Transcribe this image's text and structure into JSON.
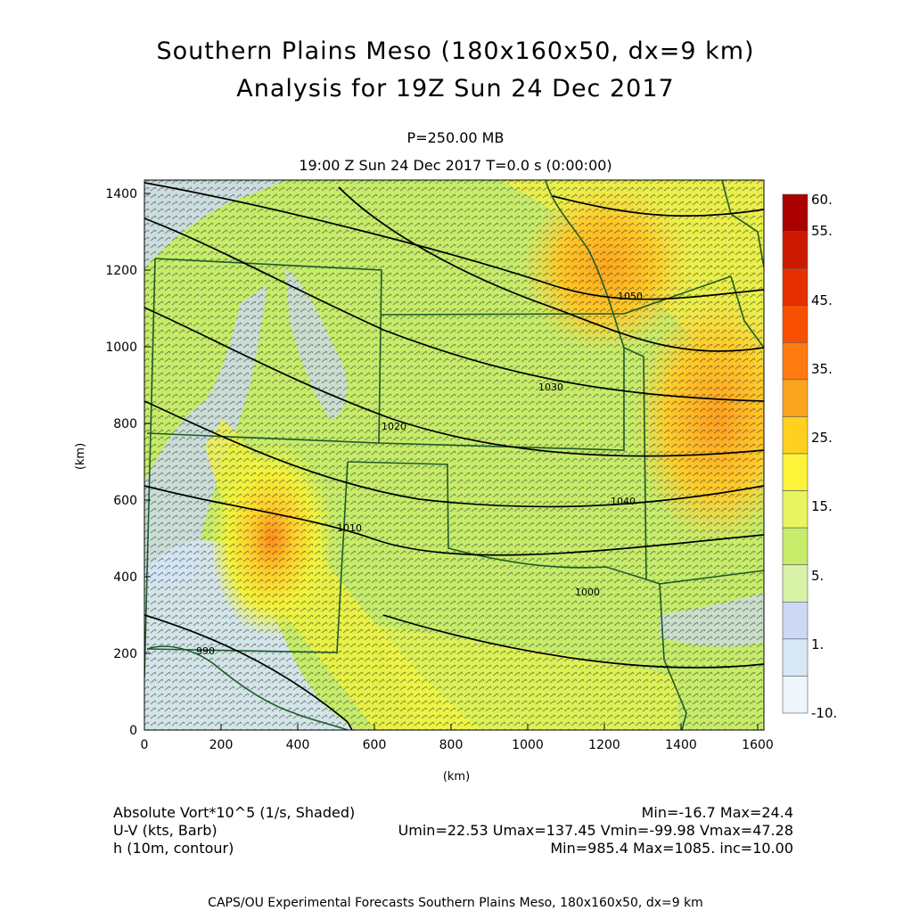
{
  "header": {
    "title_line1": "Southern Plains Meso (180x160x50, dx=9 km)",
    "title_line2": "Analysis for 19Z Sun 24 Dec 2017",
    "level": "P=250.00 MB",
    "timeline": "19:00 Z Sun 24 Dec 2017    T=0.0 s (0:00:00)"
  },
  "axes": {
    "x_label": "(km)",
    "y_label": "(km)",
    "x_ticks": [
      "0",
      "200",
      "400",
      "600",
      "800",
      "1000",
      "1200",
      "1400",
      "1600"
    ],
    "y_ticks": [
      "0",
      "200",
      "400",
      "600",
      "800",
      "1000",
      "1200",
      "1400"
    ]
  },
  "colorbar": {
    "labels": [
      "60.",
      "55.",
      "45.",
      "35.",
      "25.",
      "15.",
      "5.",
      "1.",
      "-10."
    ],
    "colors": [
      "#aa0000",
      "#cc1a00",
      "#e63000",
      "#f85000",
      "#ff7a10",
      "#fba51e",
      "#ffd020",
      "#fdf43a",
      "#e8f560",
      "#c6ec6a",
      "#d8f2a8",
      "#cdd9f4",
      "#d9e8f7",
      "#eef6fc"
    ]
  },
  "contours": {
    "labels": [
      "1050",
      "1040",
      "1030",
      "1020",
      "1010",
      "1000",
      "990"
    ]
  },
  "footer": {
    "row1_left": "Absolute Vort*10^5 (1/s, Shaded)",
    "row1_right": "Min=-16.7 Max=24.4",
    "row2_left": "U-V (kts, Barb)",
    "row2_right": "Umin=22.53 Umax=137.45 Vmin=-99.98 Vmax=47.28",
    "row3_left": "h (10m, contour)",
    "row3_right": "Min=985.4 Max=1085. inc=10.00",
    "credit": "CAPS/OU Experimental Forecasts  Southern Plains Meso, 180x160x50, dx=9 km"
  }
}
